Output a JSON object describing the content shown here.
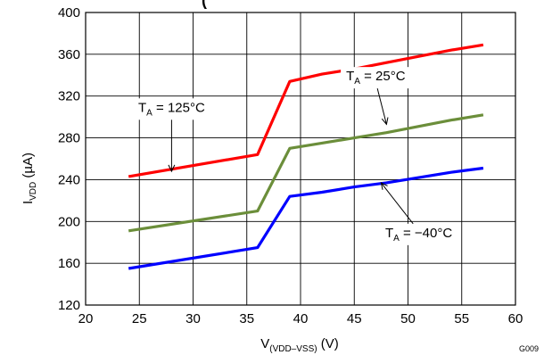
{
  "chart_data": {
    "type": "line",
    "title_fragment": "(",
    "xlabel": {
      "main": "V",
      "sub": "(VDD–VSS)",
      "unit": " (V)"
    },
    "ylabel": {
      "main": "I",
      "sub": "VDD",
      "unit": " (µA)"
    },
    "xlim": [
      20,
      60
    ],
    "ylim": [
      120,
      400
    ],
    "xticks": [
      20,
      25,
      30,
      35,
      40,
      45,
      50,
      55,
      60
    ],
    "yticks": [
      120,
      160,
      200,
      240,
      280,
      320,
      360,
      400
    ],
    "grid": true,
    "series": [
      {
        "name": "TA = 125°C",
        "label_main": "T",
        "label_sub": "A",
        "label_rest": " = 125°C",
        "color": "#ff0000",
        "x": [
          24,
          36,
          39,
          42,
          45,
          48,
          51,
          54,
          57
        ],
        "y": [
          243,
          264,
          334,
          341,
          346,
          352,
          358,
          364,
          369
        ]
      },
      {
        "name": "TA = 25°C",
        "label_main": "T",
        "label_sub": "A",
        "label_rest": " = 25°C",
        "color": "#6b8e3a",
        "x": [
          24,
          36,
          39,
          42,
          45,
          48,
          51,
          54,
          57
        ],
        "y": [
          191,
          210,
          270,
          275,
          280,
          285,
          291,
          297,
          302
        ]
      },
      {
        "name": "TA = −40°C",
        "label_main": "T",
        "label_sub": "A",
        "label_rest": " = −40°C",
        "color": "#0000ff",
        "x": [
          24,
          36,
          39,
          42,
          45,
          48,
          51,
          54,
          57
        ],
        "y": [
          155,
          175,
          224,
          228,
          233,
          237,
          242,
          247,
          251
        ]
      }
    ],
    "annotations": [
      {
        "series": 0,
        "label_x": 28,
        "label_y": 305,
        "arrow_to": [
          28,
          248
        ]
      },
      {
        "series": 1,
        "label_x": 47,
        "label_y": 335,
        "arrow_to": [
          48,
          293
        ]
      },
      {
        "series": 2,
        "label_x": 51,
        "label_y": 185,
        "arrow_to": [
          47.5,
          237
        ]
      }
    ],
    "figure_id": "G009"
  }
}
